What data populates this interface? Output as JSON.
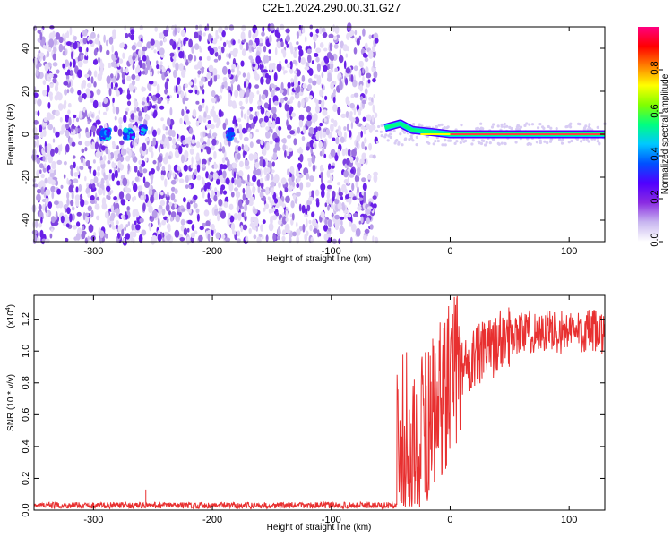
{
  "title": "C2E1.2024.290.00.31.G27",
  "chart_data": [
    {
      "type": "heatmap",
      "name": "spectrogram",
      "xlabel": "Height of straight line (km)",
      "ylabel": "Frequency (Hz)",
      "xlim": [
        -350,
        130
      ],
      "ylim": [
        -50,
        50
      ],
      "xticks": [
        -300,
        -200,
        -100,
        0,
        100
      ],
      "yticks": [
        -40,
        -20,
        0,
        20,
        40
      ],
      "noise_region_x": [
        -350,
        -62
      ],
      "signal_tone": {
        "x_start": -62,
        "x_end": 130,
        "freq_hz": 0,
        "wobble": [
          {
            "x": -55,
            "freq": 3,
            "amp": 0.4
          },
          {
            "x": -42,
            "freq": 5,
            "amp": 0.55
          },
          {
            "x": -32,
            "freq": 2,
            "amp": 0.45
          },
          {
            "x": -15,
            "freq": 1,
            "amp": 0.6
          },
          {
            "x": 0,
            "freq": 0,
            "amp": 0.9
          },
          {
            "x": 130,
            "freq": 0,
            "amp": 0.9
          }
        ]
      },
      "noise_clusters": [
        {
          "x": -290,
          "y": 0,
          "w": 8,
          "h": 4
        },
        {
          "x": -270,
          "y": 0,
          "w": 8,
          "h": 4
        },
        {
          "x": -258,
          "y": 2,
          "w": 4,
          "h": 3
        },
        {
          "x": -185,
          "y": 0,
          "w": 4,
          "h": 4
        }
      ],
      "colorbar": {
        "label": "Normalized spectral amplitude",
        "range": [
          0,
          1
        ],
        "ticks": [
          "0.0",
          "0.2",
          "0.4",
          "0.6",
          "0.8"
        ],
        "tick_values": [
          0,
          0.2,
          0.4,
          0.6,
          0.8
        ],
        "colors": [
          "#ffffff",
          "#c8b6f0",
          "#8a2be2",
          "#5000ff",
          "#0050ff",
          "#00c8ff",
          "#00ff80",
          "#80ff00",
          "#ffff00",
          "#ff8000",
          "#ff0000",
          "#ff0080"
        ]
      }
    },
    {
      "type": "line",
      "name": "snr",
      "xlabel": "Height of straight line (km)",
      "ylabel": "SNR (10 * v/v)",
      "scale_label": "(x10",
      "scale_exp": "4",
      "scale_close": ")",
      "xlim": [
        -350,
        130
      ],
      "ylim": [
        0,
        1.35
      ],
      "xticks": [
        -300,
        -200,
        -100,
        0,
        100
      ],
      "yticks": [
        0.0,
        0.2,
        0.4,
        0.6,
        0.8,
        1.0,
        1.2
      ],
      "ytick_labels": [
        "0.0",
        "0.2",
        "0.4",
        "0.6",
        "0.8",
        "1.0",
        "1.2"
      ],
      "color": "#e83030",
      "segments": [
        {
          "x_start": -350,
          "x_end": -45,
          "base": 0.03,
          "noise": 0.02
        },
        {
          "x_start": -45,
          "x_end": -25,
          "base": 0.3,
          "noise": 0.6
        },
        {
          "x_start": -25,
          "x_end": 10,
          "base": 0.65,
          "noise": 0.5
        },
        {
          "x_start": 10,
          "x_end": 50,
          "base": 1.0,
          "noise": 0.2
        },
        {
          "x_start": 50,
          "x_end": 130,
          "base": 1.12,
          "noise": 0.14
        }
      ],
      "spike": {
        "x": -256,
        "y": 0.13
      }
    }
  ],
  "colors": {
    "signal": "#e83030",
    "frame": "#000000"
  }
}
